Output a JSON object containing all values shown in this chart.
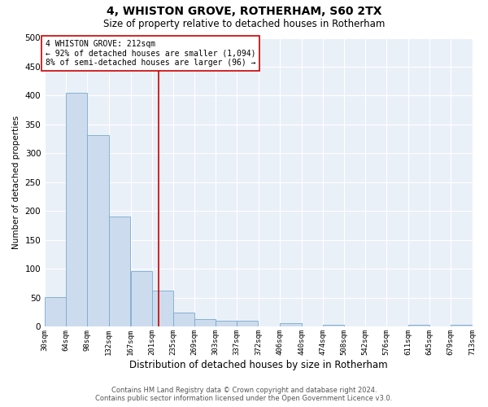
{
  "title": "4, WHISTON GROVE, ROTHERHAM, S60 2TX",
  "subtitle": "Size of property relative to detached houses in Rotherham",
  "xlabel": "Distribution of detached houses by size in Rotherham",
  "ylabel": "Number of detached properties",
  "bar_color": "#ccdcee",
  "bar_edge_color": "#7aaacb",
  "background_color": "#eaf0f8",
  "vline_x": 212,
  "vline_color": "#cc0000",
  "annotation_text": "4 WHISTON GROVE: 212sqm\n← 92% of detached houses are smaller (1,094)\n8% of semi-detached houses are larger (96) →",
  "annotation_box_color": "#ffffff",
  "annotation_box_edge": "#cc0000",
  "footer_line1": "Contains HM Land Registry data © Crown copyright and database right 2024.",
  "footer_line2": "Contains public sector information licensed under the Open Government Licence v3.0.",
  "bin_edges": [
    30,
    64,
    98,
    132,
    167,
    201,
    235,
    269,
    303,
    337,
    372,
    406,
    440,
    474,
    508,
    542,
    576,
    611,
    645,
    679,
    713
  ],
  "bin_labels": [
    "30sqm",
    "64sqm",
    "98sqm",
    "132sqm",
    "167sqm",
    "201sqm",
    "235sqm",
    "269sqm",
    "303sqm",
    "337sqm",
    "372sqm",
    "406sqm",
    "440sqm",
    "474sqm",
    "508sqm",
    "542sqm",
    "576sqm",
    "611sqm",
    "645sqm",
    "679sqm",
    "713sqm"
  ],
  "bar_heights": [
    52,
    405,
    332,
    191,
    97,
    63,
    24,
    13,
    10,
    10,
    0,
    6,
    0,
    4,
    0,
    0,
    0,
    4,
    0,
    4
  ],
  "ylim": [
    0,
    500
  ],
  "yticks": [
    0,
    50,
    100,
    150,
    200,
    250,
    300,
    350,
    400,
    450,
    500
  ],
  "fig_width": 6.0,
  "fig_height": 5.0,
  "dpi": 100
}
